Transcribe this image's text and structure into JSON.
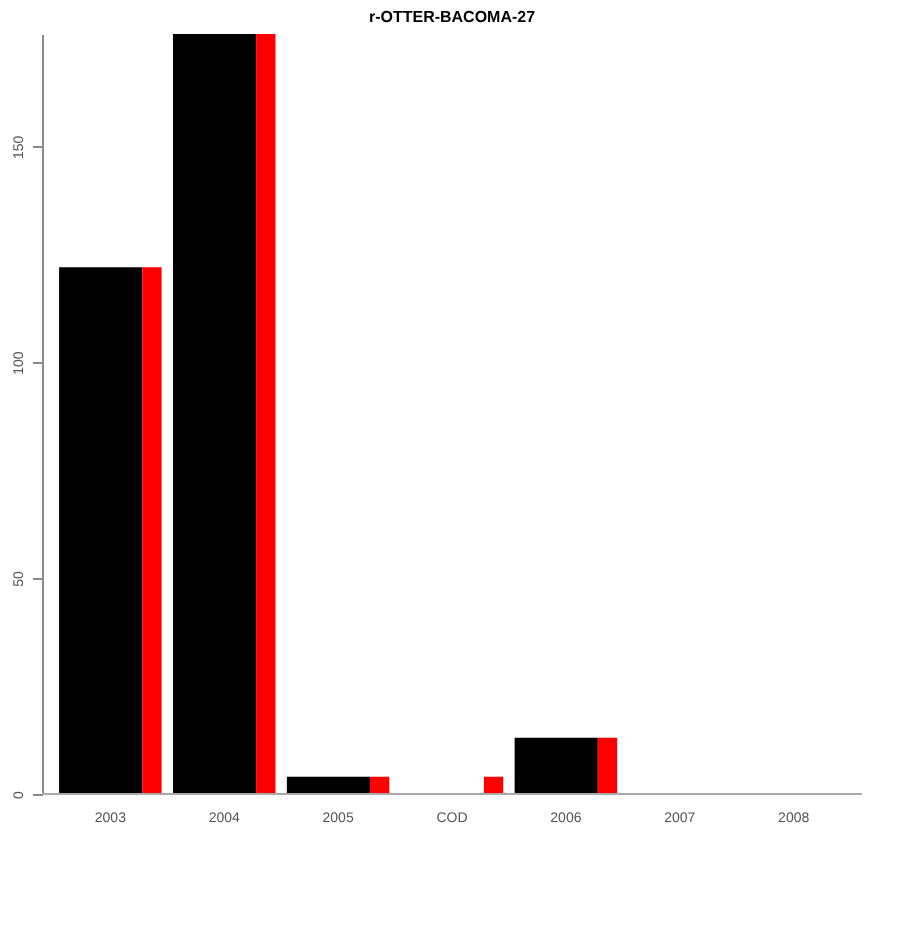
{
  "chart_data": {
    "type": "bar",
    "title": "r-OTTER-BACOMA-27",
    "categories": [
      "2003",
      "2004",
      "2005",
      "COD",
      "2006",
      "2007",
      "2008"
    ],
    "series": [
      {
        "color": "#000000",
        "values": [
          122,
          176,
          4,
          null,
          13,
          0,
          0
        ]
      },
      {
        "color": "#ff0000",
        "values": [
          122,
          176,
          4,
          4,
          13,
          0,
          0
        ]
      }
    ],
    "ylim": [
      0,
      176
    ],
    "yticks": [
      0,
      50,
      100,
      150
    ],
    "grid": false
  }
}
